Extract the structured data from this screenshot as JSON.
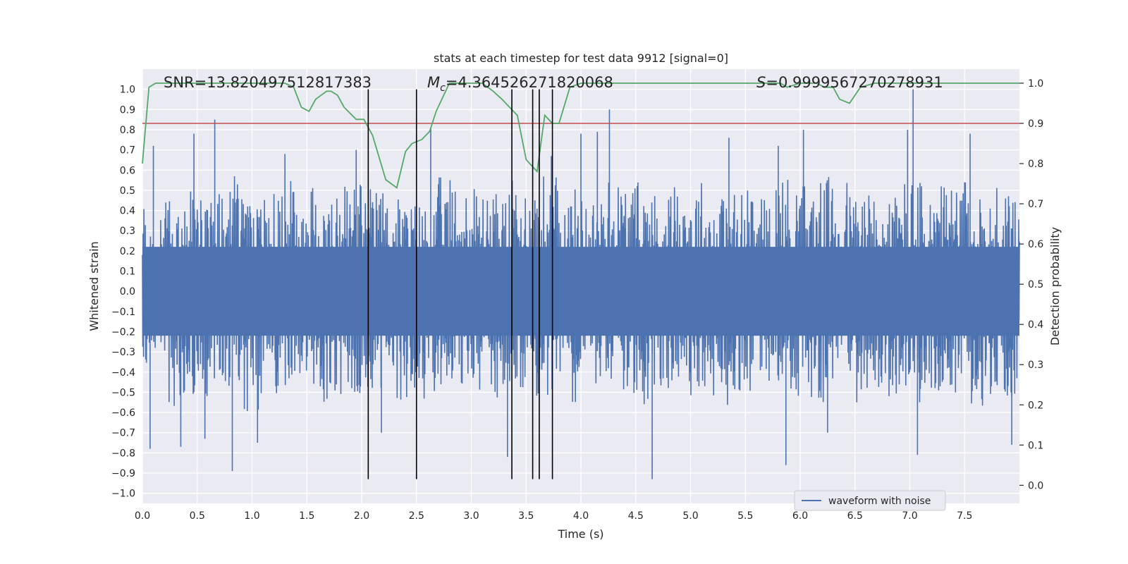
{
  "chart_data": {
    "type": "line",
    "title": "stats at each timestep for test data 9912 [signal=0]",
    "xlabel": "Time (s)",
    "ylabel": "Whitened strain",
    "y2label": "Detection probability",
    "xlim": [
      0.0,
      8.0
    ],
    "ylim": [
      -1.05,
      1.1
    ],
    "y2lim": [
      -0.045,
      1.035
    ],
    "xticks": [
      "0.0",
      "0.5",
      "1.0",
      "1.5",
      "2.0",
      "2.5",
      "3.0",
      "3.5",
      "4.0",
      "4.5",
      "5.0",
      "5.5",
      "6.0",
      "6.5",
      "7.0",
      "7.5"
    ],
    "yticks": [
      "1.0",
      "0.9",
      "0.8",
      "0.7",
      "0.6",
      "0.5",
      "0.4",
      "0.3",
      "0.2",
      "0.1",
      "0.0",
      "−0.1",
      "−0.2",
      "−0.3",
      "−0.4",
      "−0.5",
      "−0.6",
      "−0.7",
      "−0.8",
      "−0.9",
      "−1.0"
    ],
    "y2ticks": [
      "1.0",
      "0.9",
      "0.8",
      "0.7",
      "0.6",
      "0.5",
      "0.4",
      "0.3",
      "0.2",
      "0.1",
      "0.0"
    ],
    "grid": true,
    "legend_position": "lower-right",
    "annotations": {
      "snr": "SNR=13.820497512817383",
      "mc_prefix": "M",
      "mc_sub": "c",
      "mc_value": "=4.364526271820068",
      "s_prefix": "S",
      "s_value": "=0.9999567270278931"
    },
    "series": [
      {
        "name": "waveform with noise",
        "axis": "left",
        "color": "#4c72b0",
        "envelope_upper": [
          0.48,
          0.55,
          0.5,
          0.6,
          0.48,
          0.52,
          0.58,
          0.5,
          0.62,
          0.55,
          0.5,
          0.48,
          0.6,
          0.55,
          0.52,
          0.58,
          0.62,
          0.55,
          0.5,
          0.6,
          0.58,
          0.55,
          0.6,
          0.52,
          0.55,
          0.5,
          0.62,
          0.58,
          0.6,
          0.55,
          0.52,
          0.6,
          0.55,
          0.58,
          0.5,
          0.6
        ],
        "envelope_lower": [
          -0.45,
          -0.6,
          -0.55,
          -0.5,
          -0.65,
          -0.55,
          -0.5,
          -0.6,
          -0.55,
          -0.52,
          -0.6,
          -0.58,
          -0.5,
          -0.55,
          -0.6,
          -0.5,
          -0.55,
          -0.62,
          -0.5,
          -0.55,
          -0.6,
          -0.52,
          -0.55,
          -0.58,
          -0.6,
          -0.5,
          -0.55,
          -0.6,
          -0.5,
          -0.58,
          -0.55,
          -0.6,
          -0.52,
          -0.55,
          -0.6,
          -0.55
        ],
        "spikes": [
          {
            "x": 0.07,
            "y": -0.78
          },
          {
            "x": 0.1,
            "y": 0.72
          },
          {
            "x": 0.35,
            "y": -0.77
          },
          {
            "x": 0.47,
            "y": 0.78
          },
          {
            "x": 0.57,
            "y": -0.73
          },
          {
            "x": 0.66,
            "y": 0.85
          },
          {
            "x": 0.82,
            "y": -0.89
          },
          {
            "x": 1.05,
            "y": -0.75
          },
          {
            "x": 1.3,
            "y": 0.68
          },
          {
            "x": 1.95,
            "y": 0.7
          },
          {
            "x": 2.18,
            "y": -0.7
          },
          {
            "x": 2.63,
            "y": 0.81
          },
          {
            "x": 3.33,
            "y": -0.82
          },
          {
            "x": 3.73,
            "y": 0.67
          },
          {
            "x": 4.0,
            "y": 0.78
          },
          {
            "x": 4.15,
            "y": 0.79
          },
          {
            "x": 4.26,
            "y": 0.9
          },
          {
            "x": 4.65,
            "y": -0.93
          },
          {
            "x": 5.35,
            "y": 0.76
          },
          {
            "x": 5.8,
            "y": 0.72
          },
          {
            "x": 5.87,
            "y": -0.86
          },
          {
            "x": 6.03,
            "y": 0.8
          },
          {
            "x": 6.25,
            "y": -0.7
          },
          {
            "x": 6.98,
            "y": 0.8
          },
          {
            "x": 7.03,
            "y": 1.0
          },
          {
            "x": 7.07,
            "y": -0.81
          },
          {
            "x": 7.55,
            "y": 0.78
          },
          {
            "x": 7.93,
            "y": -0.76
          }
        ]
      },
      {
        "name": "detection probability",
        "axis": "right",
        "color": "#55a868",
        "x": [
          0.0,
          0.06,
          0.12,
          0.3,
          0.6,
          0.95,
          1.0,
          1.3,
          1.38,
          1.45,
          1.52,
          1.58,
          1.68,
          1.72,
          1.78,
          1.84,
          1.95,
          2.02,
          2.1,
          2.22,
          2.32,
          2.4,
          2.46,
          2.55,
          2.62,
          2.68,
          2.8,
          3.1,
          3.2,
          3.28,
          3.35,
          3.42,
          3.5,
          3.6,
          3.67,
          3.74,
          3.8,
          3.9,
          4.0,
          4.5,
          5.0,
          5.5,
          5.75,
          5.82,
          5.88,
          6.0,
          6.15,
          6.22,
          6.3,
          6.36,
          6.45,
          6.55,
          6.68,
          6.8,
          7.0,
          7.3,
          8.0
        ],
        "y": [
          0.8,
          0.99,
          1.0,
          1.0,
          1.0,
          1.0,
          1.0,
          1.0,
          0.99,
          0.94,
          0.93,
          0.96,
          0.98,
          0.98,
          0.97,
          0.94,
          0.91,
          0.91,
          0.87,
          0.76,
          0.74,
          0.83,
          0.85,
          0.86,
          0.88,
          0.93,
          1.0,
          1.0,
          0.98,
          0.96,
          0.94,
          0.92,
          0.81,
          0.78,
          0.92,
          0.9,
          0.9,
          0.99,
          1.0,
          1.0,
          1.0,
          1.0,
          1.0,
          1.0,
          0.99,
          1.0,
          1.0,
          0.99,
          0.99,
          0.96,
          0.95,
          0.99,
          1.0,
          1.0,
          1.0,
          1.0,
          1.0
        ]
      }
    ],
    "threshold": {
      "axis": "right",
      "value": 0.9,
      "color": "#c44e52"
    },
    "vlines": [
      2.06,
      2.5,
      3.37,
      3.56,
      3.62,
      3.74
    ],
    "vline_range": [
      -0.93,
      1.0
    ]
  }
}
